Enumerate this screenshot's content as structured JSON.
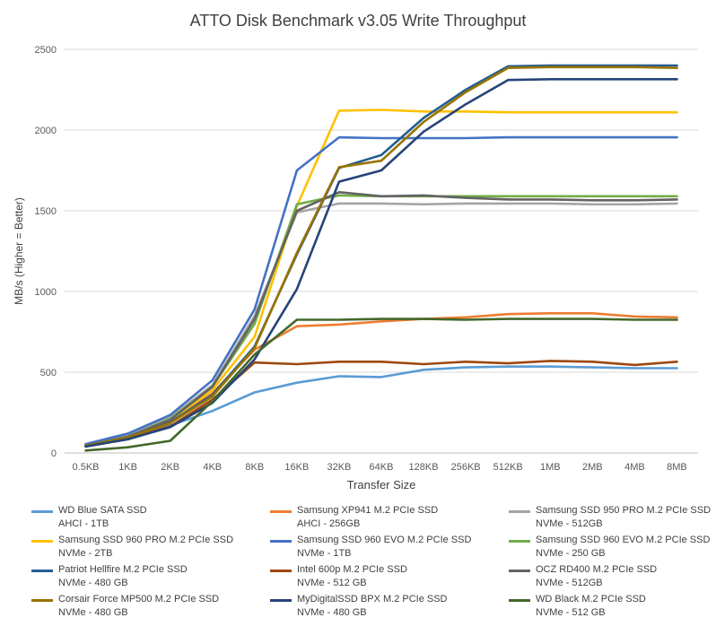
{
  "chart_data": {
    "type": "line",
    "title": "ATTO Disk Benchmark v3.05 Write Throughput",
    "xlabel": "Transfer Size",
    "ylabel": "MB/s (Higher = Better)",
    "ylim": [
      0,
      2500
    ],
    "yticks": [
      "0",
      "500",
      "1000",
      "1500",
      "2000",
      "2500"
    ],
    "grid": true,
    "legend_position": "bottom",
    "categories": [
      "0.5KB",
      "1KB",
      "2KB",
      "4KB",
      "8KB",
      "16KB",
      "32KB",
      "64KB",
      "128KB",
      "256KB",
      "512KB",
      "1MB",
      "2MB",
      "4MB",
      "8MB"
    ],
    "series": [
      {
        "name": "WD Blue SATA SSD",
        "subname": "AHCI - 1TB",
        "color": "#5b9bd5",
        "values": [
          40,
          90,
          170,
          260,
          375,
          435,
          475,
          470,
          515,
          530,
          535,
          535,
          530,
          525,
          525
        ]
      },
      {
        "name": "Samsung XP941 M.2 PCIe SSD",
        "subname": "AHCI - 256GB",
        "color": "#ed7d31",
        "values": [
          45,
          100,
          190,
          370,
          640,
          785,
          795,
          815,
          830,
          840,
          860,
          865,
          865,
          845,
          840
        ]
      },
      {
        "name": "Samsung SSD 950 PRO M.2 PCIe SSD",
        "subname": "NVMe - 512GB",
        "color": "#a5a5a5",
        "values": [
          50,
          110,
          220,
          420,
          850,
          1490,
          1545,
          1545,
          1540,
          1545,
          1545,
          1545,
          1540,
          1540,
          1545
        ]
      },
      {
        "name": "Samsung SSD 960 PRO M.2 PCIe SSD",
        "subname": "NVMe - 2TB",
        "color": "#ffc000",
        "values": [
          45,
          95,
          200,
          390,
          720,
          1530,
          2120,
          2125,
          2115,
          2115,
          2110,
          2110,
          2110,
          2110,
          2110
        ]
      },
      {
        "name": "Samsung SSD 960 EVO M.2 PCIe SSD",
        "subname": "NVMe - 1TB",
        "color": "#4472c4",
        "values": [
          55,
          120,
          235,
          450,
          890,
          1750,
          1955,
          1950,
          1950,
          1950,
          1955,
          1955,
          1955,
          1955,
          1955
        ]
      },
      {
        "name": "Samsung SSD 960 EVO M.2 PCIe SSD",
        "subname": "NVMe - 250 GB",
        "color": "#70ad47",
        "values": [
          45,
          100,
          210,
          410,
          800,
          1540,
          1595,
          1590,
          1590,
          1590,
          1590,
          1590,
          1590,
          1590,
          1590
        ]
      },
      {
        "name": "Patriot Hellfire M.2 PCIe SSD",
        "subname": "NVMe - 480 GB",
        "color": "#255e91",
        "values": [
          45,
          95,
          190,
          360,
          660,
          1230,
          1765,
          1845,
          2075,
          2250,
          2395,
          2400,
          2400,
          2400,
          2400
        ]
      },
      {
        "name": "Intel 600p M.2 PCIe SSD",
        "subname": "NVMe - 512 GB",
        "color": "#9e480e",
        "values": [
          40,
          85,
          165,
          330,
          560,
          550,
          565,
          565,
          550,
          565,
          555,
          570,
          565,
          545,
          565
        ]
      },
      {
        "name": "OCZ RD400 M.2 PCIe SSD",
        "subname": "NVMe - 512GB",
        "color": "#636363",
        "values": [
          45,
          100,
          205,
          410,
          830,
          1500,
          1615,
          1590,
          1595,
          1580,
          1570,
          1570,
          1565,
          1565,
          1570
        ]
      },
      {
        "name": "Corsair Force MP500 M.2 PCIe SSD",
        "subname": "NVMe - 480 GB",
        "color": "#997300",
        "values": [
          45,
          95,
          185,
          350,
          650,
          1240,
          1770,
          1810,
          2050,
          2235,
          2385,
          2390,
          2390,
          2390,
          2385
        ]
      },
      {
        "name": "MyDigitalSSD BPX M.2 PCIe SSD",
        "subname": "NVMe - 480 GB",
        "color": "#264478",
        "values": [
          40,
          85,
          160,
          310,
          580,
          1015,
          1680,
          1750,
          1990,
          2160,
          2310,
          2315,
          2315,
          2315,
          2315
        ]
      },
      {
        "name": "WD Black M.2 PCIe SSD",
        "subname": "NVMe - 512 GB",
        "color": "#43682b",
        "values": [
          15,
          35,
          75,
          320,
          610,
          825,
          825,
          830,
          830,
          825,
          830,
          830,
          830,
          825,
          825
        ]
      }
    ]
  }
}
